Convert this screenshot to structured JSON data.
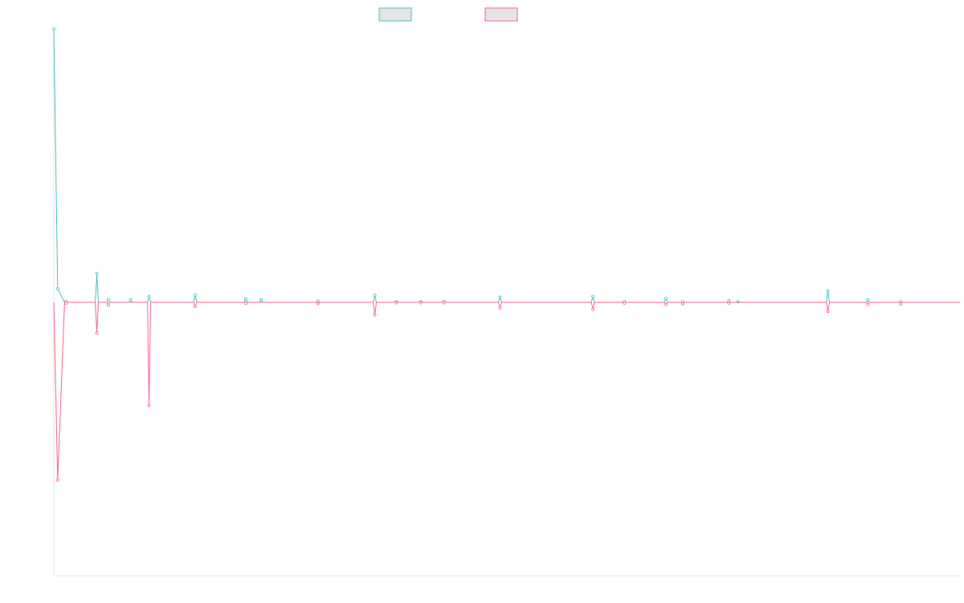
{
  "chart_data": {
    "type": "line",
    "title": "",
    "xlabel": "",
    "ylabel": "",
    "legend": {
      "placement": "top-center",
      "show_labels": false
    },
    "grid": false,
    "xlim": [
      0,
      118
    ],
    "ylim": [
      -100,
      100
    ],
    "colors": {
      "series_1": "#4bc0c0",
      "series_2": "#ff6384",
      "series_1_fill": "#e5e5e5",
      "series_2_fill": "#e5e5e5",
      "axis": "#e5e5e5"
    },
    "series": [
      {
        "points": [
          [
            0,
            100
          ],
          [
            0.5,
            5
          ],
          [
            1.4,
            0
          ],
          [
            1.6,
            0.3
          ],
          [
            1.8,
            0
          ],
          [
            5.4,
            0
          ],
          [
            5.6,
            10.5
          ],
          [
            5.8,
            0
          ],
          [
            6.9,
            0
          ],
          [
            7.1,
            1
          ],
          [
            7.3,
            0
          ],
          [
            9.8,
            0
          ],
          [
            10,
            1
          ],
          [
            10.2,
            0
          ],
          [
            12.2,
            0
          ],
          [
            12.4,
            2.2
          ],
          [
            12.6,
            0
          ],
          [
            18.2,
            0
          ],
          [
            18.4,
            2.6
          ],
          [
            18.6,
            0
          ],
          [
            24.8,
            0
          ],
          [
            25,
            1.2
          ],
          [
            25.2,
            0
          ],
          [
            26.8,
            0
          ],
          [
            27,
            1
          ],
          [
            27.2,
            0
          ],
          [
            34.2,
            0
          ],
          [
            34.4,
            0.5
          ],
          [
            34.6,
            0
          ],
          [
            41.6,
            0
          ],
          [
            41.8,
            2.6
          ],
          [
            42,
            0
          ],
          [
            44.4,
            0
          ],
          [
            44.6,
            0.2
          ],
          [
            44.8,
            0
          ],
          [
            47.6,
            0
          ],
          [
            47.8,
            0.2
          ],
          [
            48,
            0
          ],
          [
            50.6,
            0
          ],
          [
            50.8,
            0.4
          ],
          [
            51,
            0
          ],
          [
            57.9,
            0
          ],
          [
            58.1,
            1.9
          ],
          [
            58.3,
            0
          ],
          [
            70,
            0
          ],
          [
            70.2,
            2.2
          ],
          [
            70.4,
            0
          ],
          [
            74.1,
            0
          ],
          [
            74.3,
            0.3
          ],
          [
            74.5,
            0
          ],
          [
            79.5,
            0
          ],
          [
            79.7,
            1.4
          ],
          [
            79.9,
            0
          ],
          [
            81.7,
            0
          ],
          [
            81.9,
            0.2
          ],
          [
            82.1,
            0
          ],
          [
            87.7,
            0
          ],
          [
            87.9,
            0.6
          ],
          [
            88.1,
            0
          ],
          [
            88.9,
            0
          ],
          [
            89.1,
            0.2
          ],
          [
            89.3,
            0
          ],
          [
            100.6,
            0
          ],
          [
            100.8,
            4.2
          ],
          [
            101,
            0
          ],
          [
            105.8,
            0
          ],
          [
            106,
            0.9
          ],
          [
            106.2,
            0
          ],
          [
            110.1,
            0
          ],
          [
            110.3,
            0.2
          ],
          [
            110.5,
            0
          ],
          [
            118,
            0
          ]
        ]
      },
      {
        "points": [
          [
            0,
            0
          ],
          [
            0.5,
            -65
          ],
          [
            1.4,
            0
          ],
          [
            1.6,
            -0.3
          ],
          [
            1.8,
            0
          ],
          [
            5.4,
            0
          ],
          [
            5.6,
            -11.2
          ],
          [
            5.8,
            0
          ],
          [
            6.9,
            0
          ],
          [
            7.1,
            -1
          ],
          [
            7.3,
            0
          ],
          [
            12.2,
            0
          ],
          [
            12.4,
            -37.8
          ],
          [
            12.6,
            0
          ],
          [
            18.2,
            0
          ],
          [
            18.4,
            -1.5
          ],
          [
            18.6,
            0
          ],
          [
            24.8,
            0
          ],
          [
            25,
            -0.4
          ],
          [
            25.2,
            0
          ],
          [
            34.2,
            0
          ],
          [
            34.4,
            -0.5
          ],
          [
            34.6,
            0
          ],
          [
            41.6,
            0
          ],
          [
            41.8,
            -4.6
          ],
          [
            42,
            0
          ],
          [
            44.4,
            0
          ],
          [
            44.6,
            -0.2
          ],
          [
            44.8,
            0
          ],
          [
            47.6,
            0
          ],
          [
            47.8,
            -0.2
          ],
          [
            48,
            0
          ],
          [
            50.6,
            0
          ],
          [
            50.8,
            -0.2
          ],
          [
            51,
            0
          ],
          [
            57.9,
            0
          ],
          [
            58.1,
            -2.1
          ],
          [
            58.3,
            0
          ],
          [
            70,
            0
          ],
          [
            70.2,
            -2.6
          ],
          [
            70.4,
            0
          ],
          [
            74.1,
            0
          ],
          [
            74.3,
            -0.3
          ],
          [
            74.5,
            0
          ],
          [
            79.5,
            0
          ],
          [
            79.7,
            -0.8
          ],
          [
            79.9,
            0
          ],
          [
            81.7,
            0
          ],
          [
            81.9,
            -0.6
          ],
          [
            82.1,
            0
          ],
          [
            87.7,
            0
          ],
          [
            87.9,
            -0.3
          ],
          [
            88.1,
            0
          ],
          [
            100.6,
            0
          ],
          [
            100.8,
            -3.4
          ],
          [
            101,
            0
          ],
          [
            105.8,
            0
          ],
          [
            106,
            -0.8
          ],
          [
            106.2,
            0
          ],
          [
            110.1,
            0
          ],
          [
            110.3,
            -0.6
          ],
          [
            110.5,
            0
          ],
          [
            118,
            0
          ]
        ]
      }
    ]
  }
}
